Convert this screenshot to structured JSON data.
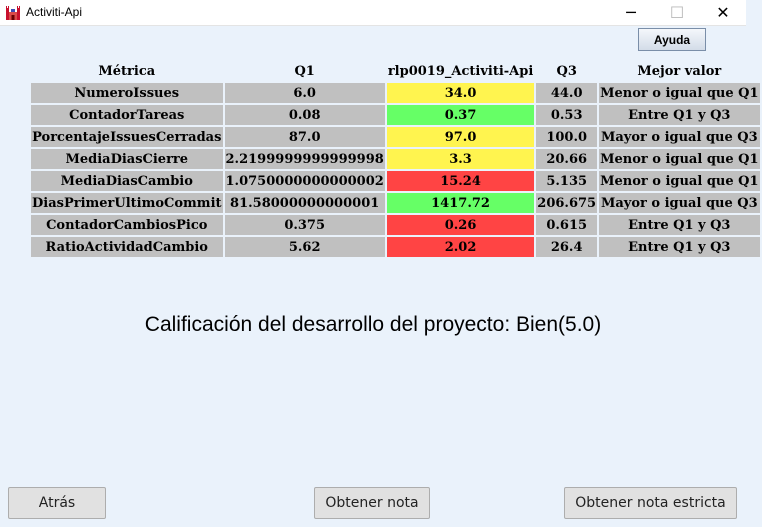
{
  "window": {
    "title": "Activiti-Api",
    "minimize": "─",
    "maximize": "☐",
    "close": "✕"
  },
  "toolbar": {
    "help_label": "Ayuda"
  },
  "table": {
    "headers": [
      "Métrica",
      "Q1",
      "rlp0019_Activiti-Api",
      "Q3",
      "Mejor valor"
    ],
    "rows": [
      {
        "metric": "NumeroIssues",
        "q1": "6.0",
        "value": "34.0",
        "q3": "44.0",
        "best": "Menor o igual que Q1",
        "status": "yellow"
      },
      {
        "metric": "ContadorTareas",
        "q1": "0.08",
        "value": "0.37",
        "q3": "0.53",
        "best": "Entre Q1 y Q3",
        "status": "green"
      },
      {
        "metric": "PorcentajeIssuesCerradas",
        "q1": "87.0",
        "value": "97.0",
        "q3": "100.0",
        "best": "Mayor o igual que Q3",
        "status": "yellow"
      },
      {
        "metric": "MediaDiasCierre",
        "q1": "2.2199999999999998",
        "value": "3.3",
        "q3": "20.66",
        "best": "Menor o igual que Q1",
        "status": "yellow"
      },
      {
        "metric": "MediaDiasCambio",
        "q1": "1.0750000000000002",
        "value": "15.24",
        "q3": "5.135",
        "best": "Menor o igual que Q1",
        "status": "red"
      },
      {
        "metric": "DiasPrimerUltimoCommit",
        "q1": "81.58000000000001",
        "value": "1417.72",
        "q3": "206.675",
        "best": "Mayor o igual que Q3",
        "status": "green"
      },
      {
        "metric": "ContadorCambiosPico",
        "q1": "0.375",
        "value": "0.26",
        "q3": "0.615",
        "best": "Entre Q1 y Q3",
        "status": "red"
      },
      {
        "metric": "RatioActividadCambio",
        "q1": "5.62",
        "value": "2.02",
        "q3": "26.4",
        "best": "Entre Q1 y Q3",
        "status": "red"
      }
    ]
  },
  "status_colors": {
    "yellow": "#fff44f",
    "green": "#66ff66",
    "red": "#ff4444",
    "neutral": "#c0c0c0"
  },
  "grade_text": "Calificación del desarrollo del proyecto: Bien(5.0)",
  "buttons": {
    "back": "Atrás",
    "get_grade": "Obtener nota",
    "get_strict_grade": "Obtener nota estricta"
  },
  "icons": {
    "app": "castle-icon"
  }
}
